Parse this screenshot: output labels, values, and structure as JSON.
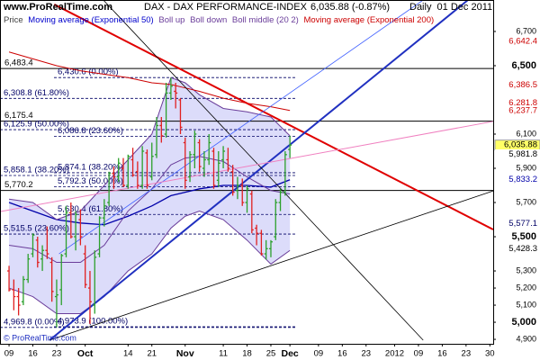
{
  "chart_data": {
    "type": "ohlc",
    "site": "www.ProRealTime.com",
    "title": "DAX - DAX PERFORMANCE-INDEX",
    "quote": "6,035.88 (-0.87%)",
    "period": "Daily  01 Dec 2011",
    "copyright": "© ProRealTime.com",
    "xlim": [
      -1.9,
      101.7
    ],
    "ylim": [
      4874,
      6884
    ],
    "xticks": [
      {
        "value": 0,
        "label": "09"
      },
      {
        "value": 5,
        "label": "16"
      },
      {
        "value": 10,
        "label": "23"
      },
      {
        "value": 16,
        "label": "Oct"
      },
      {
        "value": 25,
        "label": "14"
      },
      {
        "value": 30,
        "label": "21"
      },
      {
        "value": 37,
        "label": "Nov"
      },
      {
        "value": 45,
        "label": "11"
      },
      {
        "value": 50,
        "label": "18"
      },
      {
        "value": 55,
        "label": "25"
      },
      {
        "value": 59,
        "label": "Dec"
      },
      {
        "value": 65,
        "label": "09"
      },
      {
        "value": 70,
        "label": "16"
      },
      {
        "value": 75,
        "label": "23"
      },
      {
        "value": 81,
        "label": "2012"
      },
      {
        "value": 86,
        "label": "09"
      },
      {
        "value": 91,
        "label": "16"
      },
      {
        "value": 96,
        "label": "23"
      },
      {
        "value": 101,
        "label": "30"
      }
    ],
    "yticks": [
      {
        "value": 4900,
        "label": "4,900"
      },
      {
        "value": 5000,
        "label": "5,000"
      },
      {
        "value": 5100,
        "label": "5,100"
      },
      {
        "value": 5200,
        "label": "5,200"
      },
      {
        "value": 5300,
        "label": "5,300"
      },
      {
        "value": 5500,
        "label": "5,500"
      },
      {
        "value": 5700,
        "label": "5,700"
      },
      {
        "value": 5900,
        "label": "5,900"
      },
      {
        "value": 6100,
        "label": "6,100"
      },
      {
        "value": 6500,
        "label": "6,500"
      },
      {
        "value": 6700,
        "label": "6,700"
      }
    ],
    "ohlc": {
      "name": "Price",
      "up_color": "#2ca02c",
      "down_color": "#e02020",
      "x": [
        0,
        1,
        2,
        3,
        4,
        5,
        6,
        7,
        8,
        9,
        10,
        11,
        12,
        13,
        14,
        15,
        16,
        17,
        18,
        19,
        20,
        21,
        22,
        23,
        24,
        25,
        26,
        27,
        28,
        29,
        30,
        31,
        32,
        33,
        34,
        35,
        36,
        37,
        38,
        39,
        40,
        41,
        42,
        43,
        44,
        45,
        46,
        47,
        48,
        49,
        50,
        51,
        52,
        53,
        54,
        55,
        56,
        57,
        58,
        59
      ],
      "open": [
        5300,
        5190,
        5150,
        5120,
        5250,
        5400,
        5480,
        5370,
        5420,
        5350,
        5150,
        5190,
        5400,
        5640,
        5500,
        5600,
        5400,
        5200,
        5100,
        5400,
        5610,
        5700,
        5870,
        5850,
        5900,
        5800,
        5950,
        5880,
        5800,
        5990,
        5850,
        5980,
        6150,
        6100,
        6340,
        6350,
        6300,
        6050,
        5850,
        5980,
        6050,
        5900,
        5950,
        6000,
        5830,
        5950,
        5950,
        5880,
        5770,
        5800,
        5700,
        5750,
        5550,
        5520,
        5400,
        5430,
        5500,
        5700,
        5760,
        6010
      ],
      "high": [
        5330,
        5250,
        5200,
        5270,
        5400,
        5520,
        5500,
        5450,
        5560,
        5380,
        5250,
        5400,
        5680,
        5700,
        5650,
        5660,
        5450,
        5300,
        5420,
        5620,
        5720,
        5880,
        5910,
        5960,
        5960,
        5980,
        6020,
        5940,
        6030,
        6010,
        6050,
        6200,
        6200,
        6400,
        6430,
        6400,
        6310,
        6080,
        6000,
        6120,
        6070,
        6000,
        6100,
        6020,
        6000,
        6030,
        6020,
        5920,
        5850,
        5840,
        5800,
        5770,
        5570,
        5540,
        5480,
        5480,
        5720,
        5780,
        6000,
        6090
      ],
      "low": [
        5180,
        5070,
        5040,
        5100,
        5230,
        5380,
        5320,
        5300,
        5370,
        5120,
        4970,
        5100,
        5380,
        5490,
        5420,
        5450,
        5200,
        4990,
        5050,
        5380,
        5560,
        5680,
        5780,
        5820,
        5790,
        5780,
        5850,
        5780,
        5780,
        5780,
        5830,
        5960,
        6050,
        6080,
        6300,
        6250,
        6100,
        5780,
        5820,
        5900,
        5880,
        5850,
        5920,
        5780,
        5790,
        5900,
        5880,
        5740,
        5720,
        5680,
        5640,
        5520,
        5450,
        5390,
        5366,
        5380,
        5480,
        5650,
        5740,
        5960
      ],
      "close": [
        5190,
        5150,
        5100,
        5250,
        5370,
        5510,
        5350,
        5420,
        5400,
        5180,
        5160,
        5390,
        5640,
        5500,
        5630,
        5500,
        5220,
        5120,
        5380,
        5610,
        5680,
        5870,
        5850,
        5930,
        5800,
        5970,
        5860,
        5800,
        6000,
        5800,
        5970,
        6150,
        6090,
        6340,
        6380,
        6340,
        6140,
        5830,
        5980,
        6100,
        5910,
        5950,
        6050,
        5800,
        5930,
        6000,
        5900,
        5760,
        5800,
        5700,
        5780,
        5540,
        5520,
        5400,
        5430,
        5470,
        5700,
        5760,
        5980,
        6035.88
      ]
    },
    "band_fill": "#dcdcfa",
    "series": [
      {
        "name": "Moving average (Exponential 50)",
        "color": "#0000aa",
        "x": [
          0,
          5,
          10,
          15,
          20,
          25,
          30,
          34,
          37,
          40,
          45,
          50,
          55,
          59
        ],
        "values": [
          5700,
          5650,
          5600,
          5580,
          5570,
          5620,
          5680,
          5740,
          5760,
          5780,
          5800,
          5800,
          5790,
          5833
        ]
      },
      {
        "name": "Boll up",
        "color": "#6a3d9a",
        "x": [
          0,
          5,
          10,
          15,
          20,
          25,
          30,
          34,
          37,
          40,
          45,
          50,
          55,
          59
        ],
        "values": [
          5720,
          5700,
          5600,
          5650,
          5800,
          5950,
          6100,
          6430,
          6400,
          6330,
          6250,
          6230,
          6200,
          6090
        ]
      },
      {
        "name": "Boll down",
        "color": "#6a3d9a",
        "x": [
          0,
          5,
          10,
          15,
          20,
          25,
          30,
          34,
          37,
          40,
          45,
          50,
          55,
          59
        ],
        "values": [
          5200,
          5150,
          5050,
          5050,
          5150,
          5300,
          5400,
          5550,
          5620,
          5650,
          5600,
          5480,
          5340,
          5420
        ]
      },
      {
        "name": "Boll middle (20 2)",
        "color": "#6a3d9a",
        "x": [
          0,
          5,
          10,
          15,
          20,
          25,
          30,
          34,
          37,
          40,
          45,
          50,
          55,
          59
        ],
        "values": [
          5450,
          5430,
          5350,
          5350,
          5450,
          5650,
          5780,
          5920,
          5960,
          5970,
          5940,
          5850,
          5770,
          5750
        ]
      },
      {
        "name": "Moving average (Exponential 200)",
        "color": "#cc0000",
        "x": [
          0,
          5,
          10,
          15,
          20,
          25,
          30,
          34,
          37,
          40,
          45,
          50,
          55,
          59
        ],
        "values": [
          6580,
          6540,
          6500,
          6470,
          6450,
          6430,
          6400,
          6390,
          6370,
          6350,
          6310,
          6280,
          6260,
          6238
        ]
      }
    ],
    "trendlines": [
      {
        "x": [
          9.5,
          101.7
        ],
        "y": [
          6858,
          5542
        ],
        "color": "#e00000",
        "width": 2
      },
      {
        "x": [
          8.5,
          96.4
        ],
        "y": [
          4895,
          6884
        ],
        "color": "#2030c0",
        "width": 2
      },
      {
        "x": [
          19.8,
          87
        ],
        "y": [
          6884,
          4895
        ],
        "color": "#000000",
        "width": 0.8
      },
      {
        "x": [
          8.5,
          101.7
        ],
        "y": [
          4895,
          5768
        ],
        "color": "#000000",
        "width": 0.8
      },
      {
        "x": [
          10.5,
          87
        ],
        "y": [
          5400,
          6884
        ],
        "color": "#4060ff",
        "width": 0.8
      },
      {
        "x": [
          -1.9,
          101.7
        ],
        "y": [
          5647,
          6174
        ],
        "color": "#f080c0",
        "width": 1
      }
    ],
    "levels": [
      {
        "value": 6483.4,
        "label": "6,483.4"
      },
      {
        "value": 6175.4,
        "label": "6,175.4"
      },
      {
        "value": 5770.2,
        "label": "5,770.2"
      }
    ],
    "fibonacci": [
      {
        "value": 6430.6,
        "label": "6,430.6 (0.00%)"
      },
      {
        "value": 6308.8,
        "label": "6,308.8 (61.80%)"
      },
      {
        "value": 6125.9,
        "label": "6,125.9 (50.00%)"
      },
      {
        "value": 6086.8,
        "label": "6,086.8 (23.60%)"
      },
      {
        "value": 5874.1,
        "label": "5,874.1 (38.20%)"
      },
      {
        "value": 5858.1,
        "label": "5,858.1 (38.20%)"
      },
      {
        "value": 5792.3,
        "label": "5,792.3 (50.00%)"
      },
      {
        "value": 5630.4,
        "label": "5,630.4 (61.80%)"
      },
      {
        "value": 5515.5,
        "label": "5,515.5 (23.60%)"
      },
      {
        "value": 4969.8,
        "label": "4,969.8 (0.00%)"
      },
      {
        "value": 4973.9,
        "label": "4,973.9 (100.00%)"
      }
    ],
    "price_labels": [
      {
        "value": 6642.4,
        "label": "6,642.4",
        "color": "#cc0000"
      },
      {
        "value": 6386.5,
        "label": "6,386.5",
        "color": "#cc0000"
      },
      {
        "value": 6281.8,
        "label": "6,281.8",
        "color": "#cc0000"
      },
      {
        "value": 6237.7,
        "label": "6,237.7",
        "color": "#cc0000"
      },
      {
        "value": 6035.88,
        "label": "6,035.88",
        "color": "#000000",
        "background": "#ffff66"
      },
      {
        "value": 5981.8,
        "label": "5,981.8",
        "color": "#000000"
      },
      {
        "value": 5833.2,
        "label": "5,833.2",
        "color": "#0000aa"
      },
      {
        "value": 5577.1,
        "label": "5,577.1",
        "color": "#000066"
      },
      {
        "value": 5428.3,
        "label": "5,428.3",
        "color": "#000000"
      }
    ]
  }
}
